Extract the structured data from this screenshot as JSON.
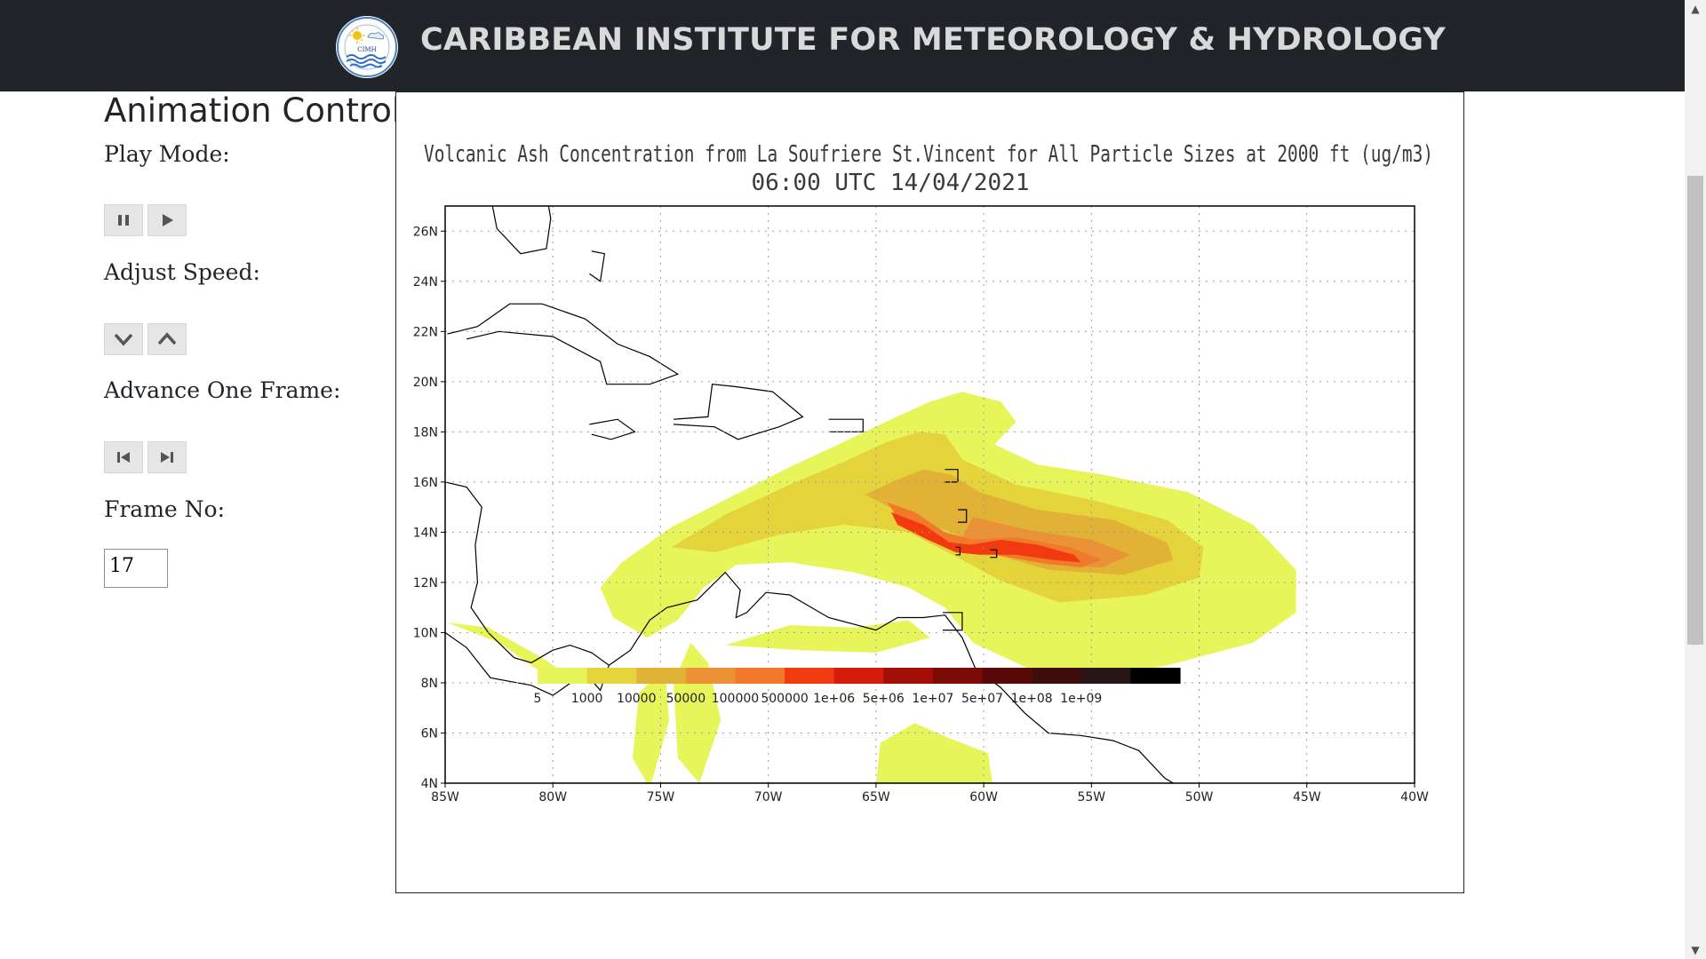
{
  "header": {
    "title": "CARIBBEAN INSTITUTE FOR METEOROLOGY & HYDROLOGY",
    "logo_text": "CIMH"
  },
  "controls": {
    "heading": "Animation Controls",
    "play_mode_label": "Play Mode:",
    "adjust_speed_label": "Adjust Speed:",
    "advance_label": "Advance One Frame:",
    "frame_label": "Frame No:",
    "frame_value": "17"
  },
  "chart_data": {
    "type": "heatmap",
    "title": "Volcanic Ash Concentration from La Soufriere St.Vincent for All Particle Sizes at 2000 ft (ug/m3)",
    "subtitle": "06:00 UTC 14/04/2021",
    "x_ticks": [
      "85W",
      "80W",
      "75W",
      "70W",
      "65W",
      "60W",
      "55W",
      "50W",
      "45W",
      "40W"
    ],
    "y_ticks": [
      "26N",
      "24N",
      "22N",
      "20N",
      "18N",
      "16N",
      "14N",
      "12N",
      "10N",
      "8N",
      "6N",
      "4N"
    ],
    "xlim": [
      -85,
      -40
    ],
    "ylim": [
      4,
      27
    ],
    "grid": true,
    "colorbar": {
      "labels": [
        "5",
        "1000",
        "10000",
        "50000",
        "100000",
        "500000",
        "1e+06",
        "5e+06",
        "1e+07",
        "5e+07",
        "1e+08",
        "1e+09"
      ],
      "colors": [
        "#e8f55a",
        "#e4d33a",
        "#e2b237",
        "#ec9236",
        "#f07a2a",
        "#f23a10",
        "#d51b0a",
        "#a40e08",
        "#7a0b07",
        "#580907",
        "#3e0d0d",
        "#281515",
        "#000000"
      ]
    }
  }
}
